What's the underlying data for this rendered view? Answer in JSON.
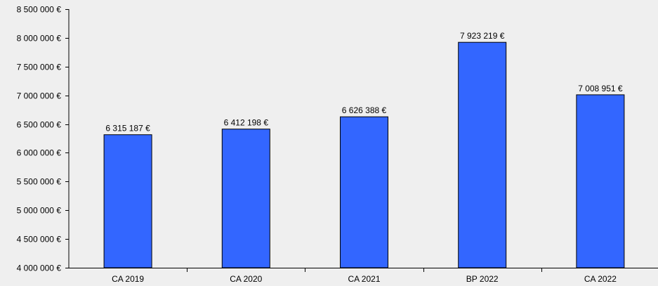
{
  "chart_data": {
    "type": "bar",
    "categories": [
      "CA 2019",
      "CA 2020",
      "CA 2021",
      "BP 2022",
      "CA 2022"
    ],
    "values": [
      6315187,
      6412198,
      6626388,
      7923219,
      7008951
    ],
    "value_labels": [
      "6 315 187 €",
      "6 412 198 €",
      "6 626 388 €",
      "7 923 219 €",
      "7 008 951 €"
    ],
    "ylim": [
      4000000,
      8500000
    ],
    "yticks": [
      4000000,
      4500000,
      5000000,
      5500000,
      6000000,
      6500000,
      7000000,
      7500000,
      8000000,
      8500000
    ],
    "ytick_labels": [
      "4 000 000 €",
      "4 500 000 €",
      "5 000 000 €",
      "5 500 000 €",
      "6 000 000 €",
      "6 500 000 €",
      "7 000 000 €",
      "7 500 000 €",
      "8 000 000 €",
      "8 500 000 €"
    ],
    "title": "",
    "xlabel": "",
    "ylabel": "",
    "grid": false,
    "legend": "none",
    "bar_color": "#3366ff",
    "bar_border_color": "#000000",
    "background_color": "#efefef"
  }
}
